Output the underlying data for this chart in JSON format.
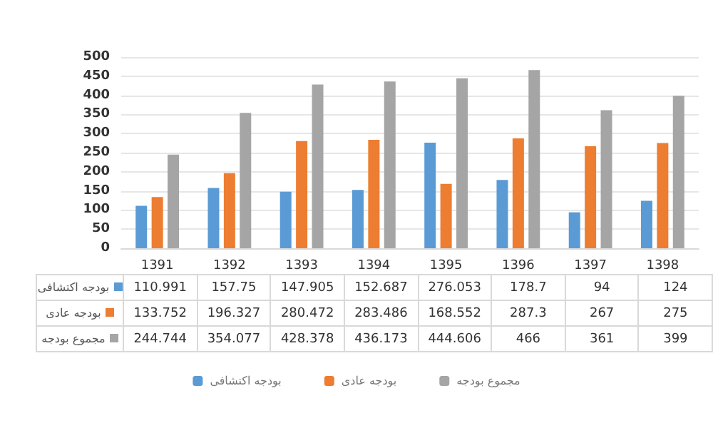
{
  "chart_data": {
    "type": "bar",
    "categories": [
      "1391",
      "1392",
      "1393",
      "1394",
      "1395",
      "1396",
      "1397",
      "1398"
    ],
    "series": [
      {
        "name": "بودجه اکتشافی",
        "color": "#5b9bd5",
        "values": [
          110.991,
          157.75,
          147.905,
          152.687,
          276.053,
          178.7,
          94,
          124
        ]
      },
      {
        "name": "بودجه عادی",
        "color": "#ed7d31",
        "values": [
          133.752,
          196.327,
          280.472,
          283.486,
          168.552,
          287.3,
          267,
          275
        ]
      },
      {
        "name": "مجموع بودجه",
        "color": "#a5a5a5",
        "values": [
          244.744,
          354.077,
          428.378,
          436.173,
          444.606,
          466,
          361,
          399
        ]
      }
    ],
    "ylim": [
      0,
      500
    ],
    "yticks": [
      0,
      50,
      100,
      150,
      200,
      250,
      300,
      350,
      400,
      450,
      500
    ],
    "grid": "y",
    "legend": "bottom",
    "data_labels": true
  }
}
